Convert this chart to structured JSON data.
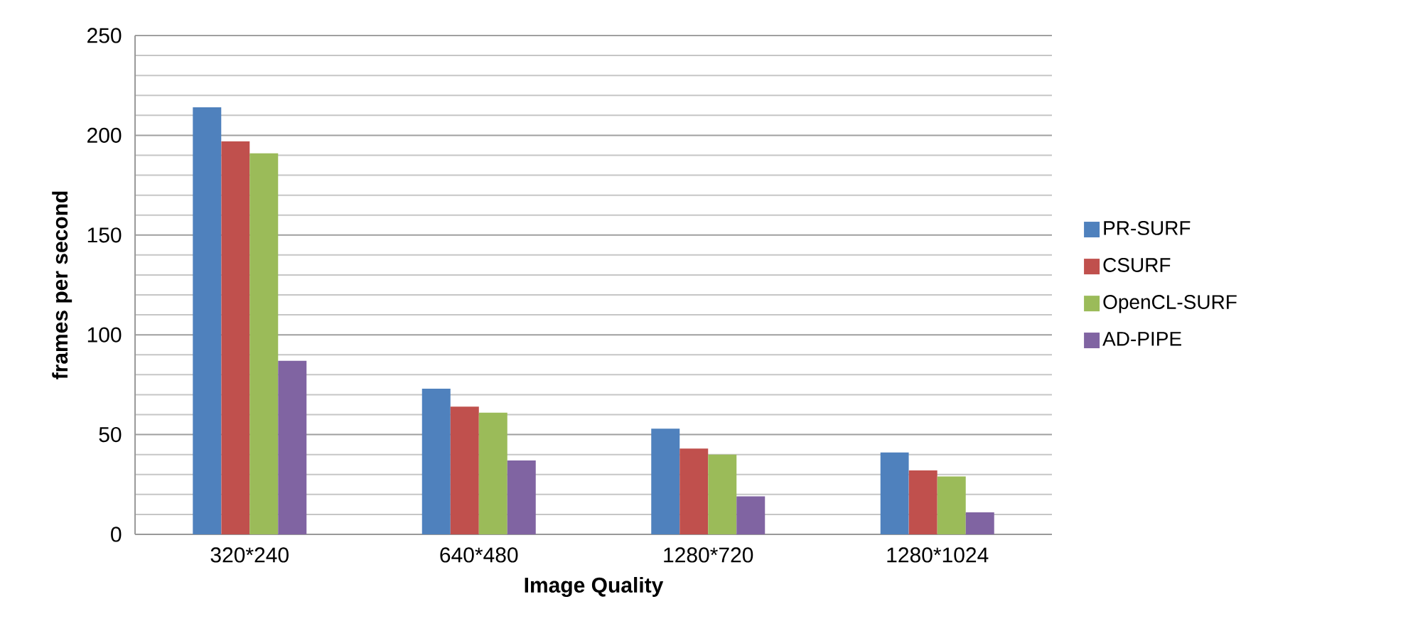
{
  "chart_data": {
    "type": "bar",
    "xlabel": "Image Quality",
    "ylabel": "frames per second",
    "categories": [
      "320*240",
      "640*480",
      "1280*720",
      "1280*1024"
    ],
    "series": [
      {
        "name": "PR-SURF",
        "color": "#4f81bd",
        "values": [
          214,
          73,
          53,
          41
        ]
      },
      {
        "name": "CSURF",
        "color": "#c0504d",
        "values": [
          197,
          64,
          43,
          32
        ]
      },
      {
        "name": "OpenCL-SURF",
        "color": "#9bbb59",
        "values": [
          191,
          61,
          40,
          29
        ]
      },
      {
        "name": "AD-PIPE",
        "color": "#8064a2",
        "values": [
          87,
          37,
          19,
          11
        ]
      }
    ],
    "ylim": [
      0,
      250
    ],
    "yticks": [
      0,
      50,
      100,
      150,
      200,
      250
    ],
    "grid": "y",
    "legend": "right"
  }
}
